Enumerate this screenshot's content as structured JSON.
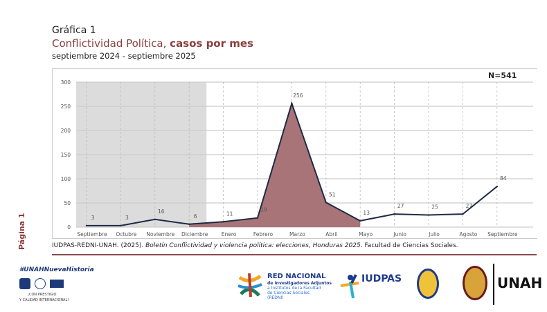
{
  "header": {
    "label": "Gráfica 1",
    "title_regular": "Conflictividad Política, ",
    "title_bold": "casos por mes",
    "subtitle": "septiembre 2024 - septiembre 2025"
  },
  "chart_data": {
    "type": "area",
    "categories": [
      "Septiembre",
      "Octubre",
      "Noviembre",
      "Diciembre",
      "Enero",
      "Febrero",
      "Marzo",
      "Abril",
      "Mayo",
      "Junio",
      "Julio",
      "Agosto",
      "Septiembre"
    ],
    "values": [
      3,
      3,
      16,
      6,
      11,
      19,
      256,
      51,
      13,
      27,
      25,
      27,
      84
    ],
    "ylim": [
      0,
      300
    ],
    "yticks": [
      0,
      50,
      100,
      150,
      200,
      250,
      300
    ],
    "shaded_period": [
      "Septiembre",
      "Diciembre"
    ],
    "highlight_fill_range": [
      "Diciembre",
      "Mayo"
    ],
    "total_label": "N=541",
    "colors": {
      "line": "#1f2a44",
      "fill": "#a87478",
      "shade": "#dcdcdc"
    }
  },
  "source": {
    "prefix": "IUDPAS-REDNI-UNAH. (2025). ",
    "title": "Boletín Conflictividad y violencia política: elecciones, Honduras 2025",
    "suffix": ". Facultad de Ciencias Sociales."
  },
  "page_label": "Página 1",
  "footer": {
    "hashtag": "#UNAHNuevaHistoria",
    "motto1": "¡CON PRESTIGIO",
    "motto2": "Y CALIDAD INTERNACIONAL!",
    "redni_title": "RED NACIONAL",
    "redni_sub": "de Investigadores Adjuntos",
    "redni_l2": "a Institutos de la Facultad",
    "redni_l3": "de Ciencias Sociales",
    "redni_l4": "(REDNI)",
    "iudpas": "IUDPAS",
    "unah": "UNAH"
  }
}
